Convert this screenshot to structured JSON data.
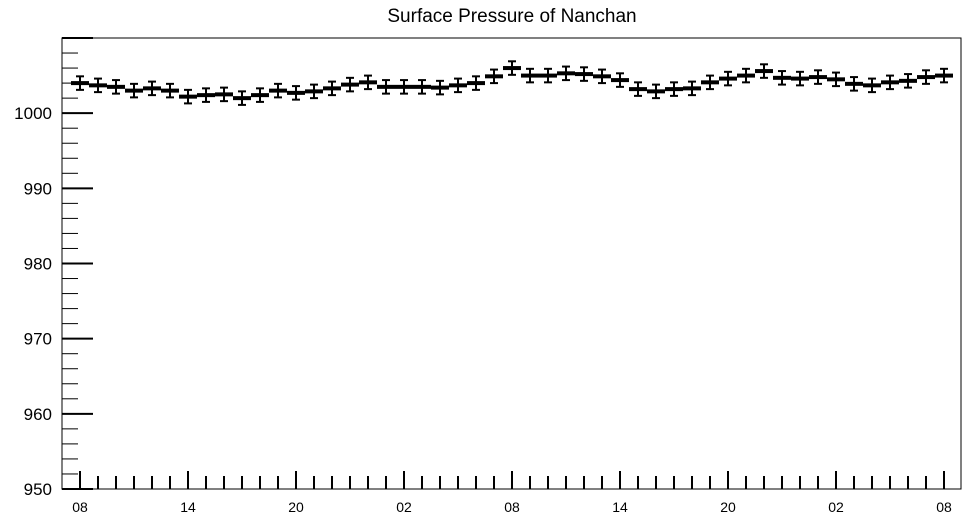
{
  "chart_data": {
    "type": "scatter",
    "title": "Surface Pressure of Nanchan",
    "xlabel": "",
    "ylabel": "",
    "ylim": [
      950,
      1010
    ],
    "grid": false,
    "legend": "none",
    "y_ticks": [
      950,
      960,
      970,
      980,
      990,
      1000
    ],
    "x_tick_labels": [
      "08",
      "14",
      "20",
      "02",
      "08",
      "14",
      "20",
      "02",
      "08"
    ],
    "error_bar": 0.9,
    "series": [
      {
        "values": [
          1004.0,
          1003.7,
          1003.5,
          1003.0,
          1003.3,
          1003.0,
          1002.2,
          1002.4,
          1002.5,
          1002.0,
          1002.4,
          1003.0,
          1002.7,
          1002.9,
          1003.3,
          1003.8,
          1004.1,
          1003.5,
          1003.5,
          1003.5,
          1003.4,
          1003.7,
          1004.0,
          1004.9,
          1006.0,
          1005.0,
          1005.0,
          1005.3,
          1005.2,
          1004.9,
          1004.4,
          1003.2,
          1002.9,
          1003.2,
          1003.3,
          1004.1,
          1004.6,
          1005.0,
          1005.6,
          1004.7,
          1004.6,
          1004.8,
          1004.5,
          1003.9,
          1003.7,
          1004.1,
          1004.3,
          1004.8,
          1005.0
        ]
      }
    ]
  },
  "colors": {
    "axis": "#000000",
    "marker": "#000000"
  }
}
